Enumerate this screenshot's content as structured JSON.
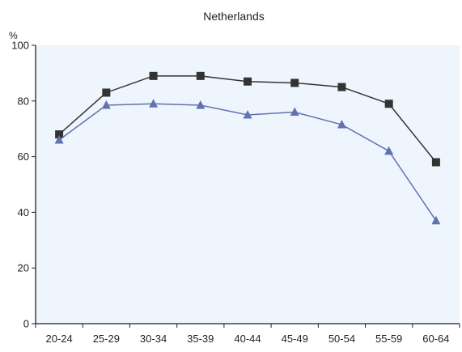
{
  "chart_data": {
    "type": "line",
    "title": "Netherlands",
    "ylabel": "%",
    "xlabel": "",
    "categories": [
      "20-24",
      "25-29",
      "30-34",
      "35-39",
      "40-44",
      "45-49",
      "50-54",
      "55-59",
      "60-64"
    ],
    "ylim": [
      0,
      100
    ],
    "yticks": [
      "0",
      "20",
      "40",
      "60",
      "80",
      "100"
    ],
    "grid": false,
    "legend": "none",
    "plot_background": "#eef5fc",
    "series": [
      {
        "marker": "square",
        "color": "#333333",
        "values": [
          68,
          83,
          89,
          89,
          87,
          86.5,
          85,
          79,
          58
        ]
      },
      {
        "marker": "triangle",
        "color": "#6272b0",
        "values": [
          66,
          78.5,
          79,
          78.5,
          75,
          76,
          71.5,
          62,
          37
        ]
      }
    ]
  }
}
